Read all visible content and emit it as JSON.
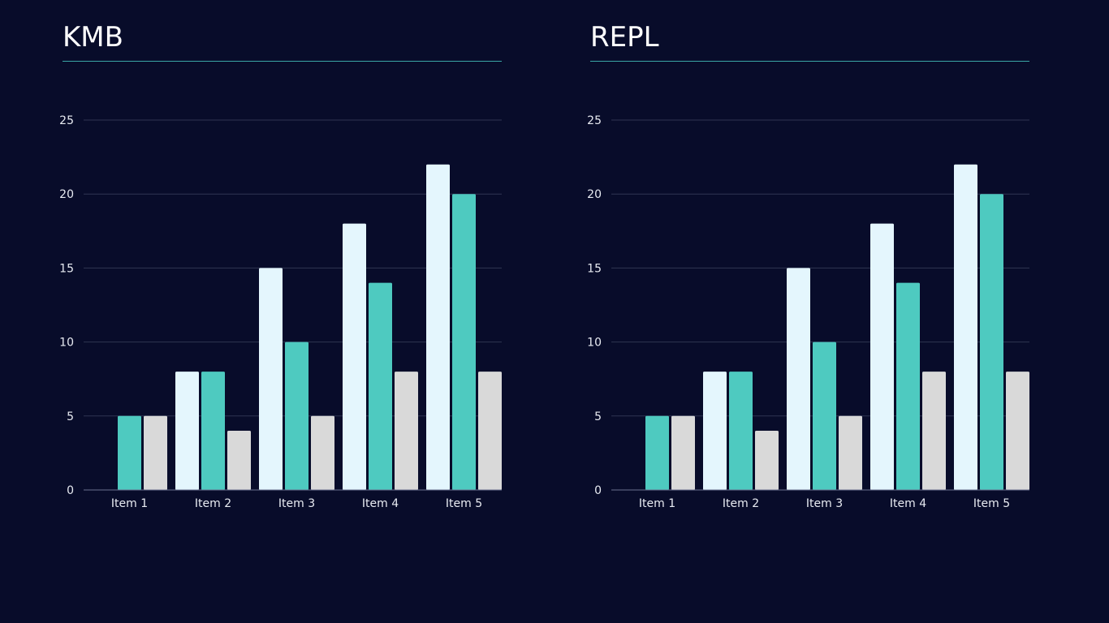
{
  "colors": {
    "background": "#080c2a",
    "series": [
      "#e4f6fd",
      "#4ecac0",
      "#d9d9d9"
    ],
    "grid": "#2f3552",
    "axis": "#6a7090",
    "title_rule": "#3aa7a6",
    "text": "#e8ebf2"
  },
  "chart_data": [
    {
      "type": "bar",
      "title": "KMB",
      "xlabel": "",
      "ylabel": "",
      "categories": [
        "Item 1",
        "Item 2",
        "Item 3",
        "Item 4",
        "Item 5"
      ],
      "series": [
        {
          "values": [
            0,
            8,
            15,
            18,
            22
          ]
        },
        {
          "values": [
            5,
            8,
            10,
            14,
            20
          ]
        },
        {
          "values": [
            5,
            4,
            5,
            8,
            8
          ]
        }
      ],
      "ylim": [
        0,
        25
      ],
      "yticks": [
        "0",
        "5",
        "10",
        "15",
        "20",
        "25"
      ],
      "grid": true,
      "legend": "none"
    },
    {
      "type": "bar",
      "title": "REPL",
      "xlabel": "",
      "ylabel": "",
      "categories": [
        "Item 1",
        "Item 2",
        "Item 3",
        "Item 4",
        "Item 5"
      ],
      "series": [
        {
          "values": [
            0,
            8,
            15,
            18,
            22
          ]
        },
        {
          "values": [
            5,
            8,
            10,
            14,
            20
          ]
        },
        {
          "values": [
            5,
            4,
            5,
            8,
            8
          ]
        }
      ],
      "ylim": [
        0,
        25
      ],
      "yticks": [
        "0",
        "5",
        "10",
        "15",
        "20",
        "25"
      ],
      "grid": true,
      "legend": "none"
    }
  ]
}
